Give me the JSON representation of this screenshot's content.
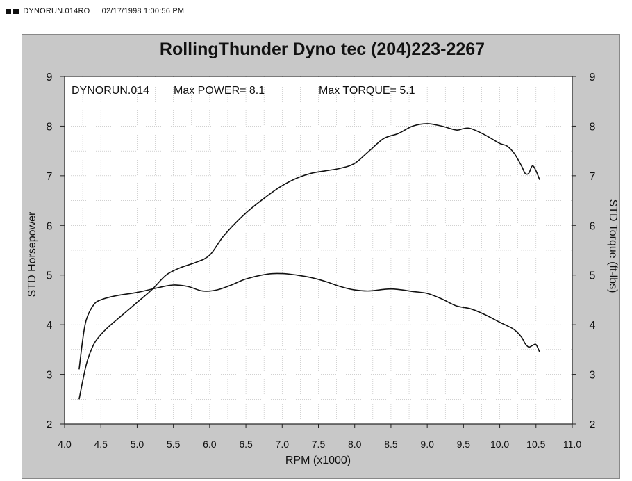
{
  "header": {
    "file": "DYNORUN.014RO",
    "datetime": "02/17/1998 1:00:56 PM"
  },
  "chart_data": {
    "type": "line",
    "title": "RollingThunder Dyno tec (204)223-2267",
    "annotation": {
      "run": "DYNORUN.014",
      "max_power": "Max POWER= 8.1",
      "max_torque": "Max TORQUE= 5.1"
    },
    "xlabel": "RPM (x1000)",
    "ylabel_left": "STD Horsepower",
    "ylabel_right": "STD Torque (ft-lbs)",
    "xlim": [
      4.0,
      11.0
    ],
    "ylim": [
      2,
      9
    ],
    "x_ticks": [
      "4.0",
      "4.5",
      "5.0",
      "5.5",
      "6.0",
      "6.5",
      "7.0",
      "7.5",
      "8.0",
      "8.5",
      "9.0",
      "9.5",
      "10.0",
      "10.5",
      "11.0"
    ],
    "y_ticks": [
      "2",
      "3",
      "4",
      "5",
      "6",
      "7",
      "8",
      "9"
    ],
    "grid": true,
    "series": [
      {
        "role": "horsepower",
        "x": [
          4.2,
          4.3,
          4.4,
          4.5,
          4.6,
          4.8,
          5.0,
          5.2,
          5.4,
          5.6,
          5.8,
          6.0,
          6.2,
          6.5,
          6.8,
          7.0,
          7.2,
          7.4,
          7.6,
          7.8,
          8.0,
          8.2,
          8.4,
          8.6,
          8.8,
          9.0,
          9.2,
          9.4,
          9.5,
          9.6,
          9.8,
          10.0,
          10.1,
          10.2,
          10.3,
          10.35,
          10.4,
          10.45,
          10.5,
          10.55
        ],
        "y": [
          2.5,
          3.2,
          3.6,
          3.8,
          3.95,
          4.2,
          4.45,
          4.7,
          5.0,
          5.15,
          5.25,
          5.4,
          5.8,
          6.25,
          6.6,
          6.8,
          6.95,
          7.05,
          7.1,
          7.15,
          7.25,
          7.5,
          7.75,
          7.85,
          8.0,
          8.05,
          8.0,
          7.92,
          7.95,
          7.95,
          7.82,
          7.65,
          7.6,
          7.45,
          7.2,
          7.05,
          7.05,
          7.2,
          7.1,
          6.92
        ]
      },
      {
        "role": "torque",
        "x": [
          4.2,
          4.25,
          4.3,
          4.4,
          4.5,
          4.7,
          5.0,
          5.3,
          5.5,
          5.7,
          5.9,
          6.1,
          6.3,
          6.5,
          6.8,
          7.0,
          7.2,
          7.4,
          7.6,
          7.8,
          8.0,
          8.2,
          8.5,
          8.8,
          9.0,
          9.2,
          9.4,
          9.6,
          9.8,
          10.0,
          10.1,
          10.2,
          10.3,
          10.35,
          10.4,
          10.45,
          10.5,
          10.55
        ],
        "y": [
          3.1,
          3.7,
          4.1,
          4.4,
          4.5,
          4.58,
          4.65,
          4.75,
          4.8,
          4.77,
          4.68,
          4.7,
          4.8,
          4.92,
          5.02,
          5.03,
          5.0,
          4.95,
          4.87,
          4.77,
          4.7,
          4.68,
          4.72,
          4.67,
          4.63,
          4.52,
          4.38,
          4.32,
          4.2,
          4.05,
          3.98,
          3.9,
          3.75,
          3.62,
          3.55,
          3.58,
          3.6,
          3.45
        ]
      }
    ]
  }
}
